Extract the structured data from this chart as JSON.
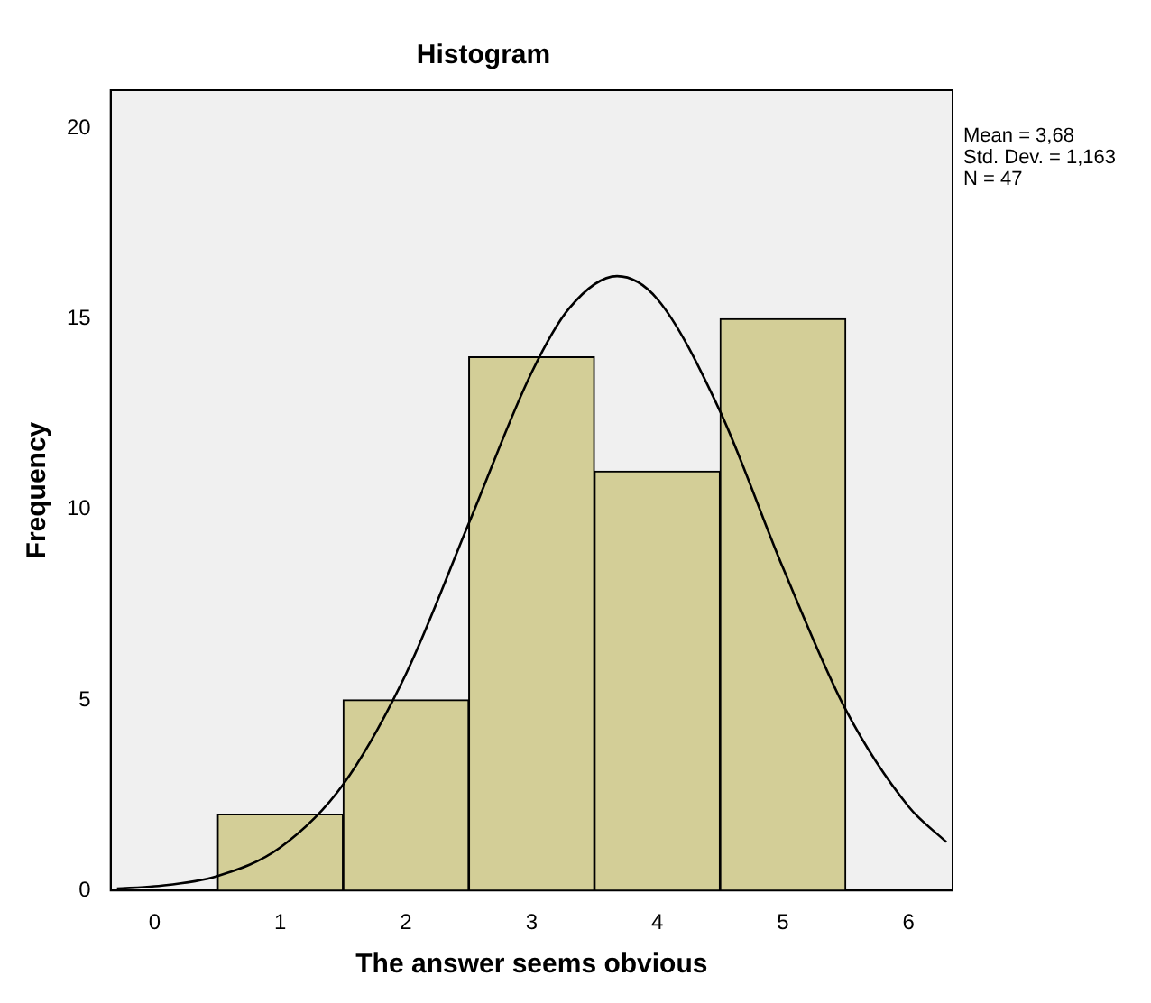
{
  "chart_data": {
    "type": "histogram",
    "title": "Histogram",
    "xlabel": "The answer seems obvious",
    "ylabel": "Frequency",
    "bins": [
      0.5,
      1.5,
      2.5,
      3.5,
      4.5,
      5.5
    ],
    "values": [
      2,
      5,
      14,
      11,
      15
    ],
    "color": "#d3ce97",
    "series": [
      {
        "type": "line",
        "color": "#000000",
        "x": [
          -0.3,
          0,
          0.5,
          1,
          1.5,
          2,
          2.5,
          3,
          3.3,
          3.68,
          4,
          4.5,
          5,
          5.5,
          6,
          6.3
        ],
        "values": [
          0.05,
          0.11,
          0.38,
          1.13,
          2.78,
          5.68,
          9.63,
          13.59,
          15.28,
          16.12,
          15.52,
          12.57,
          8.47,
          4.74,
          2.2,
          1.27
        ]
      }
    ],
    "xlim": [
      -0.35,
      6.35
    ],
    "xticks": [
      0,
      1,
      2,
      3,
      4,
      5,
      6
    ],
    "ylim": [
      0,
      21
    ],
    "yticks": [
      0,
      5,
      10,
      15,
      20
    ],
    "grid": false,
    "legend": false,
    "marker": "none",
    "annotations": [
      "Mean = 3,68",
      "Std. Dev. = 1,163",
      "N = 47"
    ]
  }
}
